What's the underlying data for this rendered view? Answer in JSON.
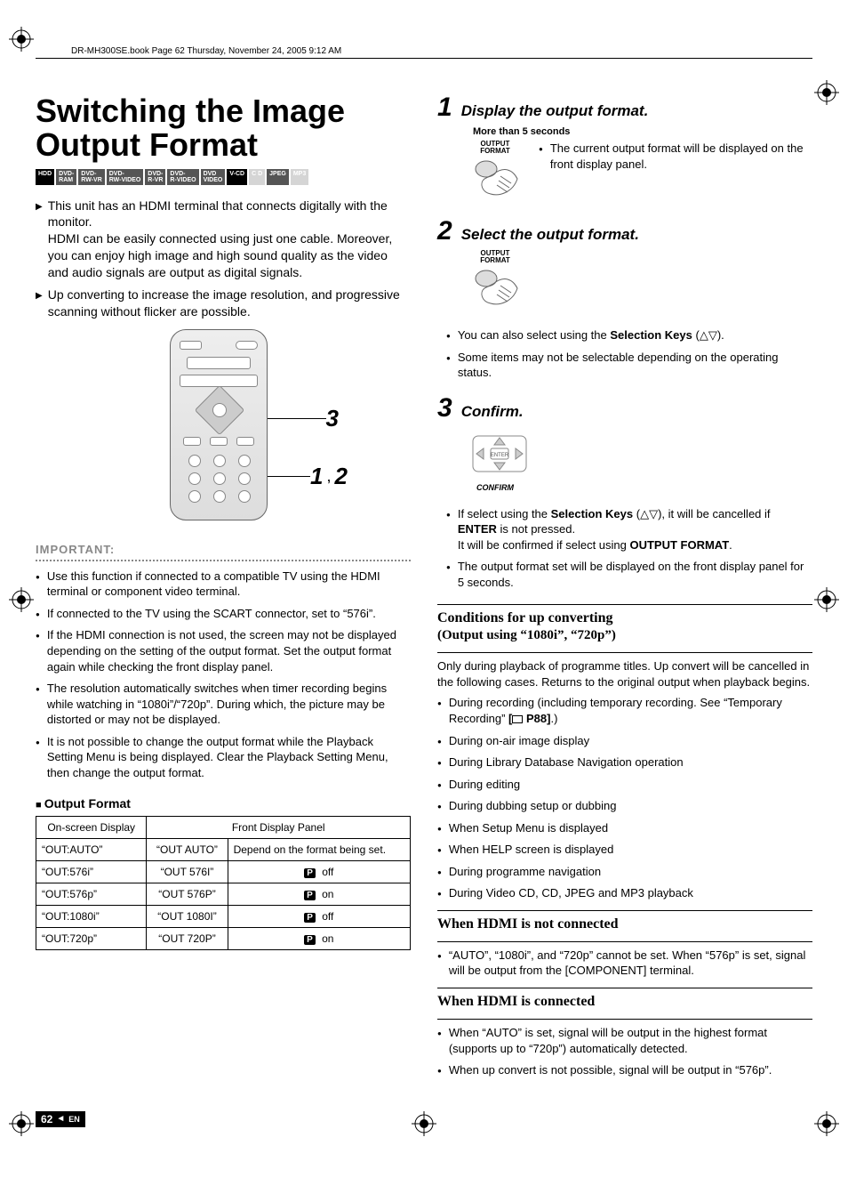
{
  "book_header": "DR-MH300SE.book  Page 62  Thursday, November 24, 2005  9:12 AM",
  "title": "Switching the Image Output Format",
  "badges": [
    {
      "label": "HDD",
      "color": "#000",
      "dim": false
    },
    {
      "label": "DVD-\nRAM",
      "color": "#555",
      "dim": false
    },
    {
      "label": "DVD-\nRW-VR",
      "color": "#555",
      "dim": false
    },
    {
      "label": "DVD-\nRW-VIDEO",
      "color": "#555",
      "dim": false
    },
    {
      "label": "DVD-\nR-VR",
      "color": "#555",
      "dim": false
    },
    {
      "label": "DVD-\nR-VIDEO",
      "color": "#555",
      "dim": false
    },
    {
      "label": "DVD\nVIDEO",
      "color": "#555",
      "dim": false
    },
    {
      "label": "V-CD",
      "color": "#000",
      "dim": false
    },
    {
      "label": "C D",
      "color": "#999",
      "dim": true
    },
    {
      "label": "JPEG",
      "color": "#555",
      "dim": false
    },
    {
      "label": "MP3",
      "color": "#999",
      "dim": true
    }
  ],
  "intro": [
    "This unit has an HDMI terminal that connects digitally with the monitor.\nHDMI can be easily connected using just one cable. Moreover, you can enjoy high image and high sound quality as the video and audio signals are output as digital signals.",
    "Up converting to increase the image resolution, and progressive scanning without flicker are possible."
  ],
  "remote_callouts": {
    "right_top": "3",
    "right_bottom_a": "1",
    "right_bottom_sep": ",",
    "right_bottom_b": "2"
  },
  "important": {
    "label": "IMPORTANT:",
    "items": [
      "Use this function if connected to a compatible TV using the HDMI terminal or component video terminal.",
      "If connected to the TV using the SCART connector, set to “576i”.",
      "If the HDMI connection is not used, the screen may not be displayed depending on the setting of the output format. Set the output format again while checking the front display panel.",
      "The resolution automatically switches when timer recording begins while watching in “1080i”/“720p”. During which, the picture may be distorted or may not be displayed.",
      "It is not possible to change the output format while the Playback Setting Menu is being displayed. Clear the Playback Setting Menu, then change the output format."
    ]
  },
  "output_table": {
    "heading": "Output Format",
    "col1": "On-screen Display",
    "col2": "Front Display Panel",
    "rows": [
      {
        "osd": "“OUT:AUTO”",
        "front": "“OUT AUTO”",
        "panel": "Depend on the format being set."
      },
      {
        "osd": "“OUT:576i”",
        "front": "“OUT  576I”",
        "panel_icon": true,
        "panel": " off"
      },
      {
        "osd": "“OUT:576p”",
        "front": "“OUT  576P”",
        "panel_icon": true,
        "panel": " on"
      },
      {
        "osd": "“OUT:1080i”",
        "front": "“OUT 1080I”",
        "panel_icon": true,
        "panel": " off"
      },
      {
        "osd": "“OUT:720p”",
        "front": "“OUT  720P”",
        "panel_icon": true,
        "panel": " on"
      }
    ]
  },
  "steps": [
    {
      "num": "1",
      "title": "Display the output format.",
      "sub": "More than 5 seconds",
      "hand_label": "OUTPUT\nFORMAT",
      "side_plain": "The current output format will be displayed on the front display panel."
    },
    {
      "num": "2",
      "title": "Select the output format.",
      "hand_label": "OUTPUT\nFORMAT",
      "bullets_html": [
        "You can also select using the <b>Selection Keys</b> (<span class='arrow-glyph'>△▽</span>).",
        "Some items may not be selectable depending on the operating status."
      ]
    },
    {
      "num": "3",
      "title": "Confirm.",
      "enter": true,
      "confirm_label": "CONFIRM",
      "bullets_html": [
        "If select using the <b>Selection Keys</b> (<span class='arrow-glyph'>△▽</span>), it will be cancelled if <b>ENTER</b> is not pressed.<br>It will be confirmed if select using <b>OUTPUT FORMAT</b>.",
        "The output format set will be displayed on the front display panel for 5 seconds."
      ]
    }
  ],
  "conditions": {
    "title": "Conditions for up converting",
    "subtitle": "(Output using “1080i”, “720p”)",
    "intro": "Only during playback of programme titles. Up convert will be cancelled in the following cases. Returns to the original output when playback begins.",
    "items_html": [
      "During recording (including temporary recording. See “Temporary Recording” <b>[<span class='ref-icon'></span> P88]</b>.)",
      "During on-air image display",
      "During Library Database Navigation operation",
      "During editing",
      "During dubbing setup or dubbing",
      "When Setup Menu is displayed",
      "When HELP screen is displayed",
      "During programme navigation",
      "During Video CD, CD, JPEG and MP3 playback"
    ]
  },
  "hdmi_not": {
    "title": "When HDMI is not connected",
    "items": [
      "“AUTO”, “1080i”, and “720p” cannot be set. When “576p” is set, signal will be output from the [COMPONENT] terminal."
    ]
  },
  "hdmi_yes": {
    "title": "When HDMI is connected",
    "items": [
      "When “AUTO” is set, signal will be output in the highest format (supports up to “720p”) automatically detected.",
      "When up convert is not possible, signal will be output in “576p”."
    ]
  },
  "footer": {
    "page": "62",
    "lang": "EN"
  }
}
